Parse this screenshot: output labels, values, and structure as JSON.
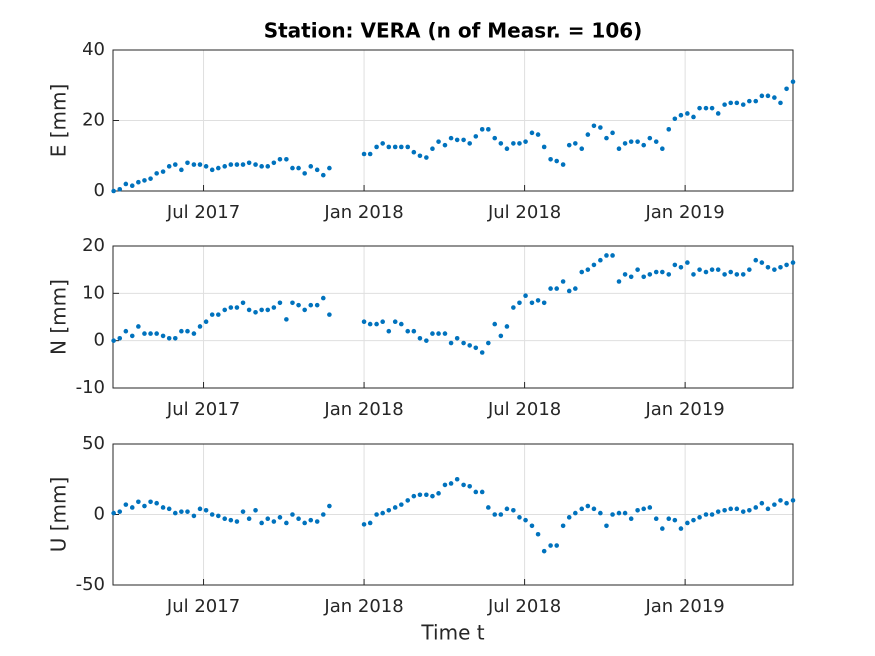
{
  "chart_data": [
    {
      "type": "scatter",
      "title": "Station: VERA (n of Measr. = 106)",
      "y_label": "E [mm]",
      "color": "#0072bd",
      "grid": true,
      "xlim": [
        2017.218,
        2019.336
      ],
      "ylim": [
        0,
        40
      ],
      "yticks": [
        0,
        20,
        40
      ],
      "xticks": [
        {
          "value": 2017.5,
          "label": "Jul 2017"
        },
        {
          "value": 2018.0,
          "label": "Jan 2018"
        },
        {
          "value": 2018.5,
          "label": "Jul 2018"
        },
        {
          "value": 2019.0,
          "label": "Jan 2019"
        }
      ],
      "x": [
        2017.22,
        2017.239,
        2017.258,
        2017.278,
        2017.297,
        2017.316,
        2017.335,
        2017.354,
        2017.374,
        2017.393,
        2017.412,
        2017.431,
        2017.45,
        2017.47,
        2017.489,
        2017.508,
        2017.527,
        2017.546,
        2017.566,
        2017.585,
        2017.604,
        2017.623,
        2017.642,
        2017.662,
        2017.681,
        2017.7,
        2017.719,
        2017.738,
        2017.758,
        2017.777,
        2017.796,
        2017.815,
        2017.834,
        2017.854,
        2017.873,
        2017.892,
        2018.0,
        2018.019,
        2018.039,
        2018.058,
        2018.077,
        2018.097,
        2018.116,
        2018.136,
        2018.155,
        2018.174,
        2018.194,
        2018.213,
        2018.232,
        2018.252,
        2018.271,
        2018.29,
        2018.31,
        2018.329,
        2018.348,
        2018.368,
        2018.387,
        2018.407,
        2018.426,
        2018.445,
        2018.465,
        2018.484,
        2018.503,
        2018.523,
        2018.542,
        2018.561,
        2018.581,
        2018.6,
        2018.62,
        2018.639,
        2018.658,
        2018.678,
        2018.697,
        2018.716,
        2018.736,
        2018.755,
        2018.774,
        2018.794,
        2018.813,
        2018.832,
        2018.852,
        2018.871,
        2018.89,
        2018.91,
        2018.929,
        2018.949,
        2018.968,
        2018.987,
        2019.007,
        2019.026,
        2019.045,
        2019.065,
        2019.084,
        2019.103,
        2019.123,
        2019.142,
        2019.161,
        2019.181,
        2019.2,
        2019.22,
        2019.239,
        2019.258,
        2019.278,
        2019.297,
        2019.316,
        2019.336
      ],
      "values": [
        0,
        0.5,
        2,
        1.5,
        2.5,
        3,
        3.5,
        5,
        5.5,
        7,
        7.5,
        6,
        8,
        7.5,
        7.5,
        7,
        6,
        6.5,
        7,
        7.5,
        7.5,
        7.5,
        8,
        7.5,
        7,
        7,
        8,
        9,
        9,
        6.5,
        6.5,
        5,
        7,
        6,
        4.5,
        6.5,
        10.5,
        10.5,
        12.5,
        13.5,
        12.5,
        12.5,
        12.5,
        12.5,
        11,
        10,
        9.5,
        12,
        14,
        13,
        15,
        14.5,
        14.5,
        13.5,
        15.5,
        17.5,
        17.5,
        15,
        13.5,
        12,
        13.5,
        13.5,
        14,
        16.5,
        16,
        12.5,
        9,
        8.5,
        7.5,
        13,
        13.5,
        12,
        16,
        18.5,
        18,
        15,
        16.5,
        12,
        13.5,
        14,
        14,
        13,
        15,
        14,
        12,
        17.5,
        20.5,
        21.5,
        22,
        21,
        23.5,
        23.5,
        23.5,
        22,
        24.5,
        25,
        25,
        24.5,
        25.5,
        25.5,
        27,
        27,
        26.5,
        25,
        29,
        31
      ]
    },
    {
      "type": "scatter",
      "y_label": "N [mm]",
      "color": "#0072bd",
      "grid": true,
      "xlim": [
        2017.218,
        2019.336
      ],
      "ylim": [
        -10,
        20
      ],
      "yticks": [
        -10,
        0,
        10,
        20
      ],
      "xticks": [
        {
          "value": 2017.5,
          "label": "Jul 2017"
        },
        {
          "value": 2018.0,
          "label": "Jan 2018"
        },
        {
          "value": 2018.5,
          "label": "Jul 2018"
        },
        {
          "value": 2019.0,
          "label": "Jan 2019"
        }
      ],
      "x": [
        2017.22,
        2017.239,
        2017.258,
        2017.278,
        2017.297,
        2017.316,
        2017.335,
        2017.354,
        2017.374,
        2017.393,
        2017.412,
        2017.431,
        2017.45,
        2017.47,
        2017.489,
        2017.508,
        2017.527,
        2017.546,
        2017.566,
        2017.585,
        2017.604,
        2017.623,
        2017.642,
        2017.662,
        2017.681,
        2017.7,
        2017.719,
        2017.738,
        2017.758,
        2017.777,
        2017.796,
        2017.815,
        2017.834,
        2017.854,
        2017.873,
        2017.892,
        2018.0,
        2018.019,
        2018.039,
        2018.058,
        2018.077,
        2018.097,
        2018.116,
        2018.136,
        2018.155,
        2018.174,
        2018.194,
        2018.213,
        2018.232,
        2018.252,
        2018.271,
        2018.29,
        2018.31,
        2018.329,
        2018.348,
        2018.368,
        2018.387,
        2018.407,
        2018.426,
        2018.445,
        2018.465,
        2018.484,
        2018.503,
        2018.523,
        2018.542,
        2018.561,
        2018.581,
        2018.6,
        2018.62,
        2018.639,
        2018.658,
        2018.678,
        2018.697,
        2018.716,
        2018.736,
        2018.755,
        2018.774,
        2018.794,
        2018.813,
        2018.832,
        2018.852,
        2018.871,
        2018.89,
        2018.91,
        2018.929,
        2018.949,
        2018.968,
        2018.987,
        2019.007,
        2019.026,
        2019.045,
        2019.065,
        2019.084,
        2019.103,
        2019.123,
        2019.142,
        2019.161,
        2019.181,
        2019.2,
        2019.22,
        2019.239,
        2019.258,
        2019.278,
        2019.297,
        2019.316,
        2019.336
      ],
      "values": [
        0,
        0.5,
        2,
        1,
        3,
        1.5,
        1.5,
        1.5,
        1,
        0.5,
        0.5,
        2,
        2,
        1.5,
        3,
        4,
        5.5,
        5.5,
        6.5,
        7,
        7,
        8,
        6.5,
        6,
        6.5,
        6.5,
        7,
        8,
        4.5,
        8,
        7.5,
        6.5,
        7.5,
        7.5,
        9,
        5.5,
        4,
        3.5,
        3.5,
        4,
        2,
        4,
        3.5,
        2,
        2,
        0.5,
        0,
        1.5,
        1.5,
        1.5,
        -0.5,
        0.5,
        -0.5,
        -1,
        -1.5,
        -2.5,
        -0.5,
        3.5,
        1,
        3,
        7,
        8,
        9.5,
        8,
        8.5,
        8,
        11,
        11,
        12.5,
        10.5,
        11,
        14.5,
        15,
        16,
        17,
        18,
        18,
        12.5,
        14,
        13.5,
        15,
        13.5,
        14,
        14.5,
        14.5,
        14,
        16,
        15.5,
        16.5,
        14,
        15,
        14.5,
        15,
        15,
        14,
        14.5,
        14,
        14,
        15,
        17,
        16.5,
        15.5,
        15,
        15.5,
        16,
        16.5
      ]
    },
    {
      "type": "scatter",
      "y_label": "U [mm]",
      "x_label": "Time t",
      "color": "#0072bd",
      "grid": true,
      "xlim": [
        2017.218,
        2019.336
      ],
      "ylim": [
        -50,
        50
      ],
      "yticks": [
        -50,
        0,
        50
      ],
      "xticks": [
        {
          "value": 2017.5,
          "label": "Jul 2017"
        },
        {
          "value": 2018.0,
          "label": "Jan 2018"
        },
        {
          "value": 2018.5,
          "label": "Jul 2018"
        },
        {
          "value": 2019.0,
          "label": "Jan 2019"
        }
      ],
      "x": [
        2017.22,
        2017.239,
        2017.258,
        2017.278,
        2017.297,
        2017.316,
        2017.335,
        2017.354,
        2017.374,
        2017.393,
        2017.412,
        2017.431,
        2017.45,
        2017.47,
        2017.489,
        2017.508,
        2017.527,
        2017.546,
        2017.566,
        2017.585,
        2017.604,
        2017.623,
        2017.642,
        2017.662,
        2017.681,
        2017.7,
        2017.719,
        2017.738,
        2017.758,
        2017.777,
        2017.796,
        2017.815,
        2017.834,
        2017.854,
        2017.873,
        2017.892,
        2018.0,
        2018.019,
        2018.039,
        2018.058,
        2018.077,
        2018.097,
        2018.116,
        2018.136,
        2018.155,
        2018.174,
        2018.194,
        2018.213,
        2018.232,
        2018.252,
        2018.271,
        2018.29,
        2018.31,
        2018.329,
        2018.348,
        2018.368,
        2018.387,
        2018.407,
        2018.426,
        2018.445,
        2018.465,
        2018.484,
        2018.503,
        2018.523,
        2018.542,
        2018.561,
        2018.581,
        2018.6,
        2018.62,
        2018.639,
        2018.658,
        2018.678,
        2018.697,
        2018.716,
        2018.736,
        2018.755,
        2018.774,
        2018.794,
        2018.813,
        2018.832,
        2018.852,
        2018.871,
        2018.89,
        2018.91,
        2018.929,
        2018.949,
        2018.968,
        2018.987,
        2019.007,
        2019.026,
        2019.045,
        2019.065,
        2019.084,
        2019.103,
        2019.123,
        2019.142,
        2019.161,
        2019.181,
        2019.2,
        2019.22,
        2019.239,
        2019.258,
        2019.278,
        2019.297,
        2019.316,
        2019.336
      ],
      "values": [
        1,
        2,
        7,
        5,
        9,
        6,
        9,
        8,
        5,
        4,
        1,
        2,
        2,
        -1,
        4,
        3,
        0,
        -1,
        -3,
        -4,
        -5,
        2,
        -3,
        3,
        -6,
        -3,
        -5,
        -2,
        -6,
        0,
        -3,
        -6,
        -4,
        -5,
        0,
        6,
        -7,
        -6,
        0,
        1,
        3,
        5,
        7,
        10,
        13,
        14,
        14,
        13,
        15,
        21,
        22,
        25,
        21,
        20,
        16,
        16,
        5,
        0,
        0,
        4,
        3,
        -2,
        -4,
        -8,
        -14,
        -26,
        -22,
        -22,
        -8,
        -2,
        1,
        4,
        6,
        4,
        1,
        -8,
        0,
        1,
        1,
        -3,
        3,
        4,
        5,
        -3,
        -10,
        -3,
        -4,
        -10,
        -6,
        -4,
        -2,
        0,
        0,
        2,
        3,
        4,
        4,
        2,
        3,
        5,
        8,
        4,
        7,
        10,
        8,
        10
      ]
    }
  ]
}
